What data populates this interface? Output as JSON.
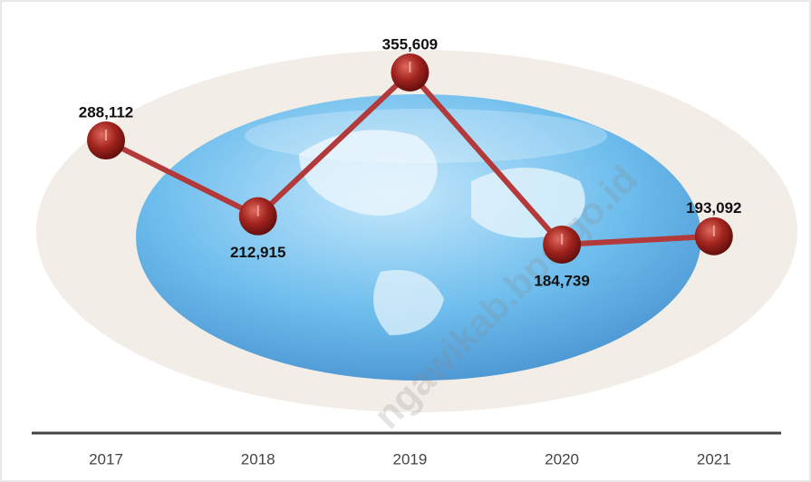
{
  "chart_data": {
    "type": "line",
    "categories": [
      "2017",
      "2018",
      "2019",
      "2020",
      "2021"
    ],
    "series": [
      {
        "color": "#b33a3a",
        "values": [
          288112,
          212915,
          355609,
          184739,
          193092
        ],
        "value_labels": [
          "288,112",
          "212,915",
          "355,609",
          "184,739",
          "193,092"
        ]
      }
    ],
    "watermark": "ngawikab.bps.go.id"
  }
}
